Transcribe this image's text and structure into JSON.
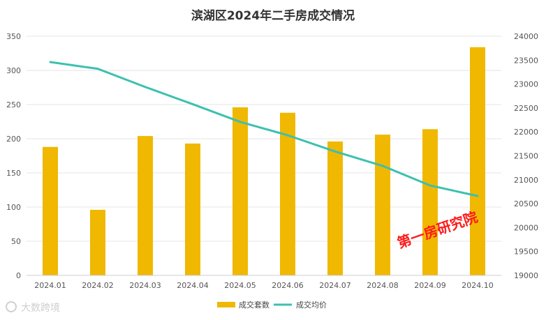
{
  "chart_data": {
    "type": "bar+line",
    "title": "滨湖区2024年二手房成交情况",
    "categories": [
      "2024.01",
      "2024.02",
      "2024.03",
      "2024.04",
      "2024.05",
      "2024.06",
      "2024.07",
      "2024.08",
      "2024.09",
      "2024.10"
    ],
    "series": [
      {
        "name": "成交套数",
        "type": "bar",
        "axis": "left",
        "color": "#F0B800",
        "values": [
          188,
          96,
          204,
          193,
          246,
          238,
          196,
          206,
          214,
          334
        ]
      },
      {
        "name": "成交均价",
        "type": "line",
        "axis": "right",
        "color": "#3CC0B0",
        "values": [
          23460,
          23320,
          22940,
          22580,
          22210,
          21930,
          21590,
          21290,
          20880,
          20660
        ]
      }
    ],
    "y_left": {
      "min": 0,
      "max": 350,
      "ticks": [
        "0",
        "50",
        "100",
        "150",
        "200",
        "250",
        "300",
        "350"
      ]
    },
    "y_right": {
      "min": 19000,
      "max": 24000,
      "ticks": [
        "19000",
        "19500",
        "20000",
        "20500",
        "21000",
        "21500",
        "22000",
        "22500",
        "23000",
        "23500",
        "24000"
      ]
    },
    "grid": true,
    "legend_position": "bottom-center"
  },
  "watermark": {
    "text": "第一房研究院",
    "color": "#FF1A1A"
  },
  "source_mark": {
    "text": "大数跨境"
  }
}
